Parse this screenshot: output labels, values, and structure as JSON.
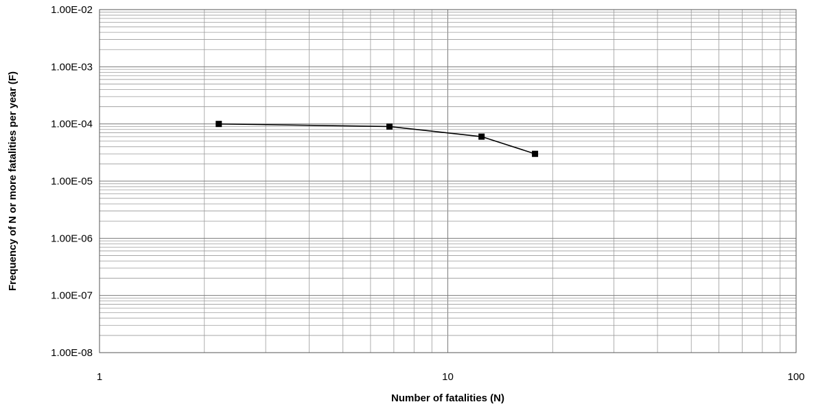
{
  "chart_data": {
    "type": "line",
    "x_scale": "log",
    "y_scale": "log",
    "xlabel": "Number of fatalities (N)",
    "ylabel": "Frequency of N or more fatalities per year (F)",
    "xlim": [
      1,
      100
    ],
    "ylim": [
      1e-08,
      0.01
    ],
    "x_ticks": [
      1,
      10,
      100
    ],
    "x_tick_labels": [
      "1",
      "10",
      "100"
    ],
    "y_ticks": [
      1e-08,
      1e-07,
      1e-06,
      1e-05,
      0.0001,
      0.001,
      0.01
    ],
    "y_tick_labels": [
      "1.00E-08",
      "1.00E-07",
      "1.00E-06",
      "1.00E-05",
      "1.00E-04",
      "1.00E-03",
      "1.00E-02"
    ],
    "grid": true,
    "legend": "none",
    "series": [
      {
        "x": [
          2.2,
          6.8,
          12.5,
          17.8
        ],
        "y": [
          0.0001,
          9e-05,
          6e-05,
          3e-05
        ],
        "color": "#000000",
        "marker": "square"
      }
    ]
  }
}
